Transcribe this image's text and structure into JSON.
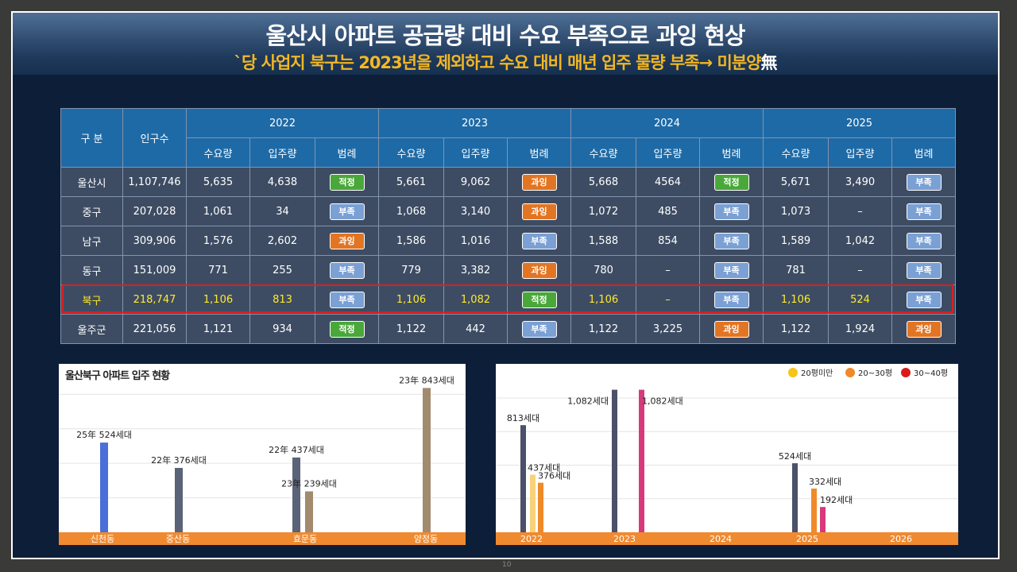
{
  "header": {
    "title": "울산시 아파트 공급량 대비 수요 부족으로 과잉 현상",
    "subtitle": "`당 사업지 북구는 2023년을 제외하고 수요 대비 매년 입주 물량 부족→ 미분양",
    "subtitle_mark": "無"
  },
  "table": {
    "col_gubun": "구 분",
    "col_pop": "인구수",
    "years": [
      "2022",
      "2023",
      "2024",
      "2025"
    ],
    "sub_cols": [
      "수요량",
      "입주량",
      "범례"
    ],
    "rows": [
      {
        "name": "울산시",
        "pop": "1,107,746",
        "cells": [
          [
            "5,635",
            "4,638",
            "적정"
          ],
          [
            "5,661",
            "9,062",
            "과잉"
          ],
          [
            "5,668",
            "4564",
            "적정"
          ],
          [
            "5,671",
            "3,490",
            "부족"
          ]
        ]
      },
      {
        "name": "중구",
        "pop": "207,028",
        "cells": [
          [
            "1,061",
            "34",
            "부족"
          ],
          [
            "1,068",
            "3,140",
            "과잉"
          ],
          [
            "1,072",
            "485",
            "부족"
          ],
          [
            "1,073",
            "–",
            "부족"
          ]
        ]
      },
      {
        "name": "남구",
        "pop": "309,906",
        "cells": [
          [
            "1,576",
            "2,602",
            "과잉"
          ],
          [
            "1,586",
            "1,016",
            "부족"
          ],
          [
            "1,588",
            "854",
            "부족"
          ],
          [
            "1,589",
            "1,042",
            "부족"
          ]
        ]
      },
      {
        "name": "동구",
        "pop": "151,009",
        "cells": [
          [
            "771",
            "255",
            "부족"
          ],
          [
            "779",
            "3,382",
            "과잉"
          ],
          [
            "780",
            "–",
            "부족"
          ],
          [
            "781",
            "–",
            "부족"
          ]
        ]
      },
      {
        "name": "북구",
        "pop": "218,747",
        "highlight": true,
        "cells": [
          [
            "1,106",
            "813",
            "부족"
          ],
          [
            "1,106",
            "1,082",
            "적정"
          ],
          [
            "1,106",
            "–",
            "부족"
          ],
          [
            "1,106",
            "524",
            "부족"
          ]
        ]
      },
      {
        "name": "울주군",
        "pop": "221,056",
        "cells": [
          [
            "1,121",
            "934",
            "적정"
          ],
          [
            "1,122",
            "442",
            "부족"
          ],
          [
            "1,122",
            "3,225",
            "과잉"
          ],
          [
            "1,122",
            "1,924",
            "과잉"
          ]
        ]
      }
    ],
    "badge_colors": {
      "적정": "#49a839",
      "과잉": "#e27523",
      "부족": "#7aa0d4"
    }
  },
  "chart_data": [
    {
      "type": "bar",
      "title": "울산북구 아파트 입주 현황",
      "categories": [
        "신천동",
        "중산동",
        "효문동",
        "양정동"
      ],
      "bars": [
        {
          "category": "신천동",
          "label": "25年  524세대",
          "value": 524,
          "color": "#4a6fd8"
        },
        {
          "category": "중산동",
          "label": "22年  376세대",
          "value": 376,
          "color": "#5b6378"
        },
        {
          "category": "효문동",
          "label": "22年  437세대",
          "value": 437,
          "color": "#5b6378"
        },
        {
          "category": "효문동",
          "label": "23年  239세대",
          "value": 239,
          "color": "#a28a6e"
        },
        {
          "category": "양정동",
          "label": "23年  843세대",
          "value": 843,
          "color": "#a28a6e"
        }
      ],
      "ylim": [
        0,
        900
      ],
      "grid": true,
      "axis_color": "#f08a30"
    },
    {
      "type": "bar",
      "categories": [
        "2022",
        "2023",
        "2024",
        "2025",
        "2026"
      ],
      "legend": [
        {
          "name": "20평미만",
          "color": "#f5c518"
        },
        {
          "name": "20~30평",
          "color": "#ef8a2a"
        },
        {
          "name": "30~40평",
          "color": "#d81a1a"
        }
      ],
      "legend_position": "top-right",
      "bars": [
        {
          "year": "2022",
          "label": "813세대",
          "value": 813,
          "color": "#4c5068"
        },
        {
          "year": "2022",
          "label": "437세대",
          "value": 437,
          "color": "#f8d27a"
        },
        {
          "year": "2022",
          "label": "376세대",
          "value": 376,
          "color": "#ef8a2a"
        },
        {
          "year": "2023",
          "label": "1,082세대",
          "value": 1082,
          "color": "#4c5068"
        },
        {
          "year": "2023",
          "label": "1,082세대",
          "value": 1082,
          "color": "#d63a7a"
        },
        {
          "year": "2025",
          "label": "524세대",
          "value": 524,
          "color": "#4c5068"
        },
        {
          "year": "2025",
          "label": "332세대",
          "value": 332,
          "color": "#ef8a2a"
        },
        {
          "year": "2025",
          "label": "192세대",
          "value": 192,
          "color": "#d63a7a"
        }
      ],
      "ylim": [
        0,
        1100
      ],
      "grid": true,
      "axis_color": "#f08a30"
    }
  ],
  "footer": {
    "page": "10"
  }
}
